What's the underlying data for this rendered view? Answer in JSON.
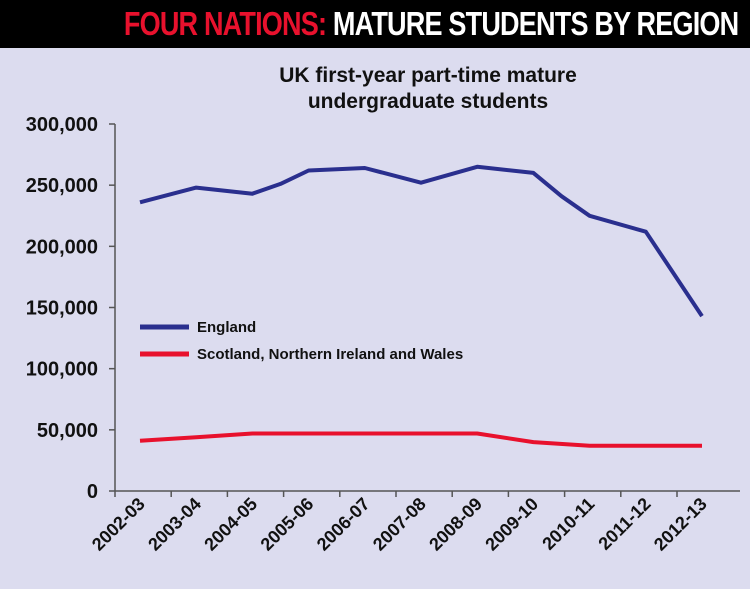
{
  "header": {
    "title_red": "FOUR NATIONS:",
    "title_white": "MATURE STUDENTS BY REGION"
  },
  "chart_data": {
    "type": "line",
    "title_lines": [
      "UK first-year part-time mature",
      "undergraduate students"
    ],
    "xlabel": "",
    "ylabel": "",
    "ylim": [
      0,
      300000
    ],
    "y_ticks": [
      0,
      50000,
      100000,
      150000,
      200000,
      250000,
      300000
    ],
    "y_tick_labels": [
      "0",
      "50,000",
      "100,000",
      "150,000",
      "200,000",
      "250,000",
      "300,000"
    ],
    "categories": [
      "2002-03",
      "2003-04",
      "2004-05",
      "2005-06",
      "2006-07",
      "2007-08",
      "2008-09",
      "2009-10",
      "2010-11",
      "2011-12",
      "2012-13"
    ],
    "grid": false,
    "legend_position": "middle-left",
    "series": [
      {
        "name": "England",
        "color": "#2a2f8e",
        "x": [
          0,
          1,
          2,
          2.5,
          3,
          4,
          5,
          6,
          7,
          7.5,
          8,
          9,
          10
        ],
        "values": [
          236000,
          248000,
          243000,
          251000,
          262000,
          264000,
          252000,
          265000,
          260000,
          241000,
          225000,
          212000,
          143000
        ]
      },
      {
        "name": "Scotland, Northern Ireland and Wales",
        "color": "#e8112d",
        "x": [
          0,
          1,
          2,
          3,
          4,
          5,
          6,
          7,
          8,
          9,
          10
        ],
        "values": [
          41000,
          44000,
          47000,
          47000,
          47000,
          47000,
          47000,
          40000,
          37000,
          37000,
          37000
        ]
      }
    ]
  }
}
